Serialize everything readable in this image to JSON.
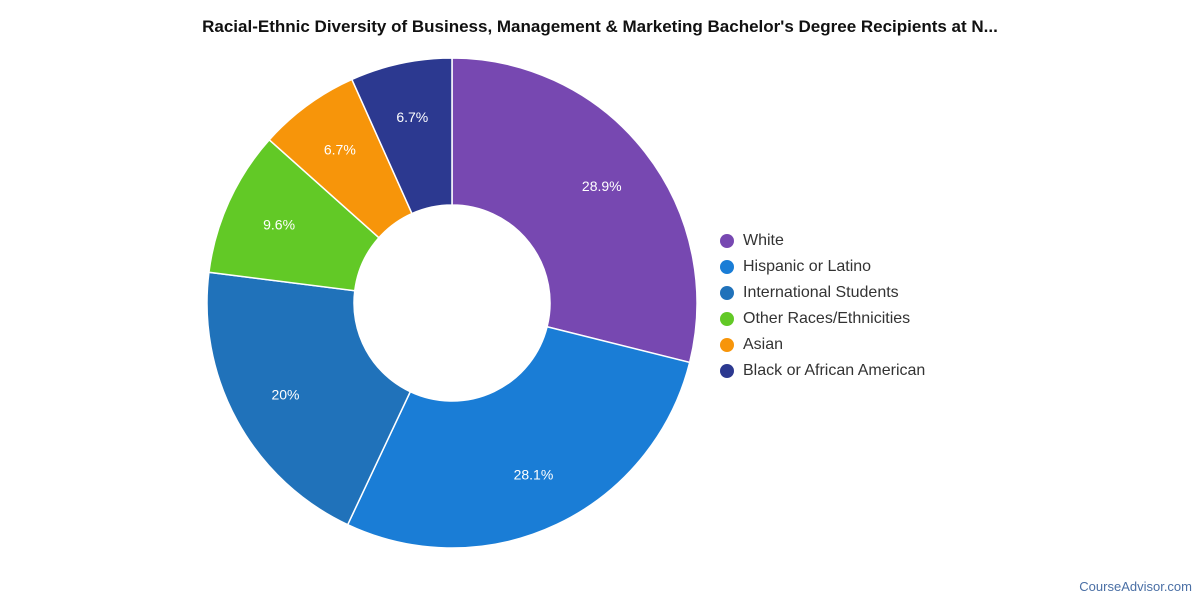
{
  "chart_data": {
    "type": "pie",
    "variant": "donut",
    "title": "Racial-Ethnic Diversity of Business, Management & Marketing Bachelor's Degree Recipients at N...",
    "legend_position": "right",
    "slices": [
      {
        "name": "White",
        "value": 28.9,
        "label": "28.9%",
        "color": "#7748b1"
      },
      {
        "name": "Hispanic or Latino",
        "value": 28.1,
        "label": "28.1%",
        "color": "#1a7dd6"
      },
      {
        "name": "International Students",
        "value": 20.0,
        "label": "20%",
        "color": "#2072ba"
      },
      {
        "name": "Other Races/Ethnicities",
        "value": 9.6,
        "label": "9.6%",
        "color": "#62c926"
      },
      {
        "name": "Asian",
        "value": 6.7,
        "label": "6.7%",
        "color": "#f7950a"
      },
      {
        "name": "Black or African American",
        "value": 6.7,
        "label": "6.7%",
        "color": "#2c3990"
      }
    ]
  },
  "footer": {
    "credit": "CourseAdvisor.com"
  }
}
